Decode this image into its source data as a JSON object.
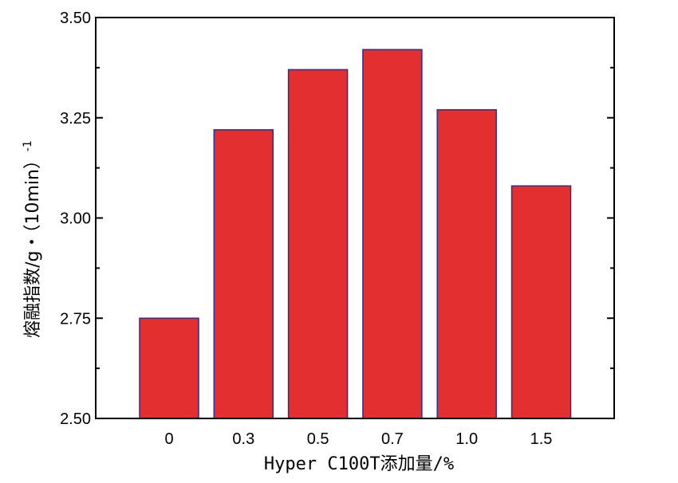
{
  "chart_data": {
    "type": "bar",
    "categories": [
      "0",
      "0.3",
      "0.5",
      "0.7",
      "1.0",
      "1.5"
    ],
    "values": [
      2.75,
      3.22,
      3.37,
      3.42,
      3.27,
      3.08
    ],
    "xlabel": "Hyper C100T添加量/%",
    "ylabel": "熔融指数/g・（10min）",
    "ylabel_superscript": "-1",
    "ylim": [
      2.5,
      3.5
    ],
    "yticks": [
      "2.50",
      "2.75",
      "3.00",
      "3.25",
      "3.50"
    ],
    "grid": false,
    "bar_color": "#e32f2f",
    "bar_edge_color": "#2b2f8f"
  }
}
